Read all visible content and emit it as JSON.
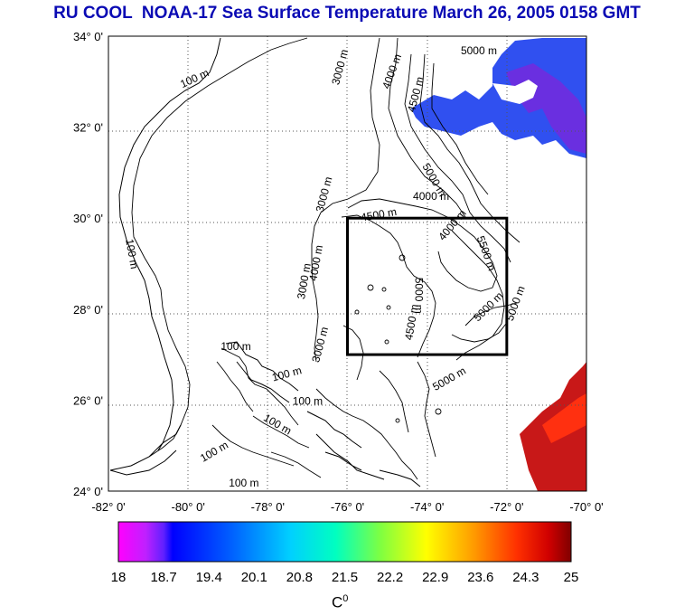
{
  "title": "RU COOL  NOAA-17 Sea Surface Temperature March 26, 2005 0158 GMT",
  "map": {
    "lat_labels": [
      "34° 0'",
      "32° 0'",
      "30° 0'",
      "28° 0'",
      "26° 0'",
      "24° 0'"
    ],
    "lon_labels": [
      "-82° 0'",
      "-80° 0'",
      "-78° 0'",
      "-76° 0'",
      "-74° 0'",
      "-72° 0'",
      "-70° 0'"
    ],
    "lat_range": [
      24,
      34
    ],
    "lon_range": [
      -82,
      -70
    ],
    "box": {
      "lon_min": -76,
      "lon_max": -72,
      "lat_min": 27,
      "lat_max": 30
    },
    "contour_labels": [
      {
        "text": "100 m",
        "lon": -79.8,
        "lat": 33.0,
        "rot": -25
      },
      {
        "text": "100 m",
        "lon": -81.5,
        "lat": 29.2,
        "rot": 80
      },
      {
        "text": "100 m",
        "lon": -78.8,
        "lat": 27.1,
        "rot": 0
      },
      {
        "text": "100 m",
        "lon": -79.3,
        "lat": 24.8,
        "rot": -30
      },
      {
        "text": "100 m",
        "lon": -78.6,
        "lat": 24.1,
        "rot": 0
      },
      {
        "text": "100 m",
        "lon": -77.5,
        "lat": 26.5,
        "rot": -15
      },
      {
        "text": "100 m",
        "lon": -77.0,
        "lat": 25.9,
        "rot": 0
      },
      {
        "text": "100 m",
        "lon": -77.8,
        "lat": 25.4,
        "rot": 30
      },
      {
        "text": "3000 m",
        "lon": -76.1,
        "lat": 33.3,
        "rot": -75
      },
      {
        "text": "4000 m",
        "lon": -74.8,
        "lat": 33.2,
        "rot": -70
      },
      {
        "text": "4500 m",
        "lon": -74.2,
        "lat": 32.7,
        "rot": -75
      },
      {
        "text": "5000 m",
        "lon": -72.7,
        "lat": 33.6,
        "rot": 0
      },
      {
        "text": "5000 m",
        "lon": -73.9,
        "lat": 30.8,
        "rot": 60
      },
      {
        "text": "4000 m",
        "lon": -73.9,
        "lat": 30.4,
        "rot": 0
      },
      {
        "text": "4500 m",
        "lon": -75.2,
        "lat": 30.0,
        "rot": -10
      },
      {
        "text": "3000 m",
        "lon": -76.5,
        "lat": 30.5,
        "rot": -75
      },
      {
        "text": "4000 m",
        "lon": -73.3,
        "lat": 29.8,
        "rot": -50
      },
      {
        "text": "5500 m",
        "lon": -72.6,
        "lat": 29.2,
        "rot": 70
      },
      {
        "text": "5000 m",
        "lon": -72.4,
        "lat": 28.0,
        "rot": -45
      },
      {
        "text": "5000 m",
        "lon": -71.7,
        "lat": 28.1,
        "rot": -70
      },
      {
        "text": "4500 m",
        "lon": -74.3,
        "lat": 27.7,
        "rot": -80
      },
      {
        "text": "5000 m",
        "lon": -74.3,
        "lat": 28.3,
        "rot": 90
      },
      {
        "text": "3000 m",
        "lon": -77.0,
        "lat": 28.6,
        "rot": -80
      },
      {
        "text": "3000 m",
        "lon": -76.6,
        "lat": 27.2,
        "rot": -75
      },
      {
        "text": "5000 m",
        "lon": -73.4,
        "lat": 26.4,
        "rot": -30
      },
      {
        "text": "4000 m",
        "lon": -76.7,
        "lat": 29.0,
        "rot": -80
      }
    ]
  },
  "colorbar": {
    "ticks": [
      "18",
      "18.7",
      "19.4",
      "20.1",
      "20.8",
      "21.5",
      "22.2",
      "22.9",
      "23.6",
      "24.3",
      "25"
    ],
    "unit": "C",
    "unit_sup": "0",
    "min": 18,
    "max": 25
  },
  "colors": {
    "title": "#0a0ab4",
    "frame": "#000000",
    "ocean": "#ffffff"
  }
}
